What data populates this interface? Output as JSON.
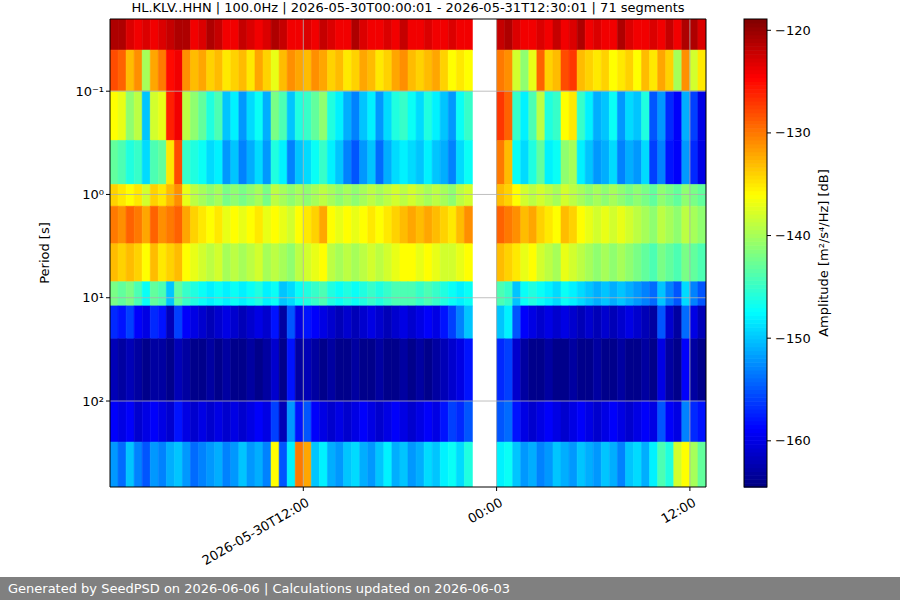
{
  "chart_data": {
    "type": "heatmap",
    "title": "HL.KLV..HHN | 100.0Hz | 2026-05-30T00:00:01 - 2026-05-31T12:30:01 | 71 segments",
    "ylabel": "Period [s]",
    "footer": "Generated by SeedPSD on 2026-06-06 | Calculations updated on 2026-06-03",
    "log": "y",
    "grid": true,
    "color": "jet",
    "xlim": [
      0,
      37
    ],
    "xticks": [
      {
        "value": 12,
        "label": "2026-05-30T12:00"
      },
      {
        "value": 24,
        "label": "00:00"
      },
      {
        "value": 36,
        "label": "12:00"
      }
    ],
    "ylim": [
      0.02,
      680
    ],
    "yticks": [
      {
        "value": 0.1,
        "label": "10⁻¹"
      },
      {
        "value": 1,
        "label": "10⁰"
      },
      {
        "value": 10,
        "label": "10¹"
      },
      {
        "value": 100,
        "label": "10²"
      }
    ],
    "x": [
      0,
      0.5,
      1,
      1.5,
      2,
      2.5,
      3,
      3.5,
      4,
      4.5,
      5,
      5.5,
      6,
      6.5,
      7,
      7.5,
      8,
      8.5,
      9,
      9.5,
      10,
      10.5,
      11,
      11.5,
      12,
      12.5,
      13,
      13.5,
      14,
      14.5,
      15,
      15.5,
      16,
      16.5,
      17,
      17.5,
      18,
      18.5,
      19,
      19.5,
      20,
      20.5,
      21,
      21.5,
      22,
      24,
      24.5,
      25,
      25.5,
      26,
      26.5,
      27,
      27.5,
      28,
      28.5,
      29,
      29.5,
      30,
      30.5,
      31,
      31.5,
      32,
      32.5,
      33,
      33.5,
      34,
      34.5,
      35,
      35.5,
      36,
      36.5
    ],
    "period_edges": [
      0.02,
      0.04,
      0.1,
      0.3,
      0.8,
      1.3,
      3,
      7,
      12,
      25,
      100,
      250,
      680
    ],
    "values": [
      [
        -121,
        -121,
        -123,
        -124,
        -123,
        -124,
        -123,
        -122,
        -121,
        -121,
        -124,
        -123,
        -121,
        -122,
        -124,
        -124,
        -122,
        -123,
        -124,
        -123,
        -121,
        -122,
        -124,
        -124,
        -123,
        -124,
        -122,
        -123,
        -124,
        -124,
        -121,
        -123,
        -124,
        -124,
        -123,
        -124,
        -122,
        -124,
        -124,
        -123,
        -124,
        -124,
        -123,
        -124,
        -124,
        -122,
        -121,
        -123,
        -124,
        -124,
        -123,
        -124,
        -122,
        -124,
        -123,
        -121,
        -124,
        -123,
        -124,
        -124,
        -121,
        -123,
        -124,
        -124,
        -123,
        -124,
        -122,
        -124,
        -121,
        -121,
        -123
      ],
      [
        -128,
        -129,
        -133,
        -131,
        -140,
        -132,
        -130,
        -125,
        -124,
        -131,
        -133,
        -132,
        -134,
        -133,
        -135,
        -134,
        -133,
        -135,
        -132,
        -134,
        -137,
        -133,
        -131,
        -132,
        -133,
        -131,
        -132,
        -134,
        -133,
        -135,
        -134,
        -132,
        -133,
        -135,
        -134,
        -132,
        -131,
        -133,
        -134,
        -133,
        -132,
        -134,
        -136,
        -135,
        -136,
        -130,
        -131,
        -138,
        -141,
        -137,
        -129,
        -134,
        -133,
        -128,
        -127,
        -133,
        -134,
        -135,
        -134,
        -136,
        -135,
        -134,
        -136,
        -133,
        -135,
        -132,
        -134,
        -140,
        -131,
        -138,
        -135
      ],
      [
        -136,
        -137,
        -141,
        -139,
        -150,
        -138,
        -137,
        -126,
        -124,
        -139,
        -141,
        -143,
        -146,
        -144,
        -150,
        -148,
        -152,
        -149,
        -147,
        -151,
        -142,
        -144,
        -150,
        -146,
        -145,
        -143,
        -141,
        -146,
        -148,
        -151,
        -153,
        -150,
        -148,
        -152,
        -149,
        -146,
        -145,
        -147,
        -149,
        -146,
        -148,
        -150,
        -152,
        -147,
        -145,
        -127,
        -129,
        -145,
        -148,
        -144,
        -139,
        -146,
        -145,
        -136,
        -135,
        -145,
        -148,
        -151,
        -150,
        -147,
        -152,
        -149,
        -150,
        -146,
        -155,
        -152,
        -157,
        -159,
        -151,
        -156,
        -160
      ],
      [
        -143,
        -144,
        -146,
        -145,
        -149,
        -144,
        -143,
        -135,
        -128,
        -145,
        -146,
        -147,
        -149,
        -148,
        -152,
        -150,
        -153,
        -151,
        -149,
        -152,
        -146,
        -148,
        -153,
        -150,
        -149,
        -147,
        -145,
        -148,
        -150,
        -153,
        -155,
        -152,
        -150,
        -154,
        -151,
        -149,
        -148,
        -149,
        -150,
        -148,
        -150,
        -151,
        -153,
        -149,
        -147,
        -130,
        -133,
        -147,
        -149,
        -146,
        -143,
        -148,
        -147,
        -141,
        -140,
        -148,
        -150,
        -152,
        -151,
        -149,
        -153,
        -151,
        -152,
        -149,
        -156,
        -153,
        -158,
        -159,
        -152,
        -157,
        -160
      ],
      [
        -134,
        -135,
        -136,
        -135,
        -138,
        -134,
        -135,
        -133,
        -131,
        -137,
        -139,
        -140,
        -141,
        -140,
        -142,
        -141,
        -142,
        -141,
        -140,
        -142,
        -139,
        -140,
        -141,
        -140,
        -141,
        -140,
        -139,
        -140,
        -141,
        -140,
        -141,
        -140,
        -139,
        -140,
        -139,
        -138,
        -139,
        -138,
        -139,
        -140,
        -139,
        -140,
        -141,
        -139,
        -138,
        -133,
        -134,
        -136,
        -138,
        -139,
        -138,
        -139,
        -140,
        -138,
        -139,
        -140,
        -141,
        -140,
        -141,
        -140,
        -141,
        -142,
        -141,
        -142,
        -143,
        -141,
        -142,
        -143,
        -141,
        -142,
        -143
      ],
      [
        -130,
        -131,
        -129,
        -130,
        -132,
        -129,
        -131,
        -130,
        -129,
        -132,
        -134,
        -135,
        -136,
        -135,
        -137,
        -136,
        -137,
        -136,
        -135,
        -137,
        -136,
        -137,
        -138,
        -136,
        -135,
        -134,
        -132,
        -136,
        -137,
        -136,
        -137,
        -136,
        -135,
        -136,
        -135,
        -134,
        -133,
        -132,
        -133,
        -132,
        -133,
        -134,
        -135,
        -133,
        -131,
        -129,
        -130,
        -131,
        -133,
        -132,
        -134,
        -135,
        -136,
        -133,
        -134,
        -136,
        -137,
        -138,
        -137,
        -138,
        -137,
        -138,
        -139,
        -140,
        -141,
        -139,
        -140,
        -141,
        -139,
        -140,
        -141
      ],
      [
        -133,
        -134,
        -133,
        -134,
        -136,
        -133,
        -135,
        -134,
        -133,
        -136,
        -137,
        -138,
        -139,
        -138,
        -140,
        -139,
        -140,
        -139,
        -138,
        -140,
        -139,
        -140,
        -141,
        -139,
        -138,
        -137,
        -136,
        -139,
        -140,
        -139,
        -140,
        -139,
        -138,
        -139,
        -138,
        -137,
        -136,
        -136,
        -137,
        -136,
        -137,
        -138,
        -138,
        -137,
        -136,
        -133,
        -134,
        -135,
        -137,
        -136,
        -138,
        -139,
        -140,
        -137,
        -138,
        -139,
        -140,
        -141,
        -140,
        -141,
        -140,
        -141,
        -142,
        -143,
        -144,
        -142,
        -143,
        -144,
        -142,
        -143,
        -144
      ],
      [
        -142,
        -143,
        -142,
        -144,
        -147,
        -143,
        -144,
        -150,
        -143,
        -145,
        -146,
        -147,
        -148,
        -147,
        -148,
        -147,
        -148,
        -147,
        -146,
        -148,
        -147,
        -150,
        -149,
        -147,
        -146,
        -145,
        -144,
        -146,
        -147,
        -146,
        -147,
        -146,
        -145,
        -146,
        -145,
        -144,
        -144,
        -144,
        -145,
        -144,
        -145,
        -146,
        -147,
        -148,
        -147,
        -144,
        -145,
        -150,
        -147,
        -146,
        -147,
        -148,
        -149,
        -147,
        -148,
        -149,
        -150,
        -151,
        -150,
        -151,
        -150,
        -151,
        -152,
        -153,
        -154,
        -150,
        -153,
        -155,
        -149,
        -153,
        -155
      ],
      [
        -157,
        -158,
        -156,
        -159,
        -160,
        -157,
        -158,
        -162,
        -156,
        -159,
        -160,
        -161,
        -162,
        -161,
        -160,
        -161,
        -162,
        -161,
        -160,
        -161,
        -158,
        -163,
        -155,
        -160,
        -158,
        -159,
        -160,
        -161,
        -162,
        -161,
        -162,
        -161,
        -160,
        -161,
        -162,
        -161,
        -160,
        -161,
        -160,
        -159,
        -160,
        -158,
        -156,
        -153,
        -150,
        -150,
        -148,
        -155,
        -159,
        -160,
        -161,
        -160,
        -161,
        -160,
        -161,
        -162,
        -161,
        -162,
        -161,
        -162,
        -161,
        -160,
        -161,
        -162,
        -163,
        -155,
        -161,
        -163,
        -154,
        -160,
        -162
      ],
      [
        -162,
        -163,
        -162,
        -163,
        -164,
        -163,
        -163,
        -164,
        -162,
        -163,
        -164,
        -164,
        -163,
        -164,
        -163,
        -164,
        -164,
        -163,
        -164,
        -163,
        -161,
        -164,
        -158,
        -163,
        -162,
        -163,
        -164,
        -163,
        -164,
        -164,
        -163,
        -164,
        -164,
        -163,
        -164,
        -164,
        -163,
        -164,
        -163,
        -164,
        -163,
        -162,
        -161,
        -160,
        -158,
        -157,
        -156,
        -161,
        -163,
        -164,
        -164,
        -163,
        -164,
        -164,
        -163,
        -164,
        -164,
        -163,
        -164,
        -164,
        -163,
        -164,
        -164,
        -163,
        -164,
        -160,
        -163,
        -164,
        -159,
        -163,
        -164
      ],
      [
        -159,
        -160,
        -159,
        -161,
        -160,
        -159,
        -160,
        -161,
        -158,
        -160,
        -161,
        -160,
        -161,
        -160,
        -161,
        -160,
        -161,
        -160,
        -159,
        -160,
        -156,
        -162,
        -152,
        -158,
        -155,
        -159,
        -160,
        -161,
        -160,
        -161,
        -160,
        -159,
        -160,
        -161,
        -160,
        -159,
        -160,
        -161,
        -160,
        -159,
        -160,
        -158,
        -156,
        -157,
        -155,
        -155,
        -154,
        -158,
        -160,
        -161,
        -160,
        -159,
        -160,
        -161,
        -160,
        -159,
        -160,
        -161,
        -160,
        -159,
        -160,
        -161,
        -160,
        -159,
        -160,
        -155,
        -159,
        -160,
        -153,
        -157,
        -158
      ],
      [
        -152,
        -154,
        -150,
        -153,
        -155,
        -152,
        -153,
        -151,
        -150,
        -152,
        -154,
        -153,
        -152,
        -151,
        -153,
        -152,
        -150,
        -152,
        -151,
        -153,
        -136,
        -155,
        -148,
        -130,
        -132,
        -150,
        -148,
        -151,
        -152,
        -150,
        -149,
        -151,
        -152,
        -150,
        -148,
        -151,
        -150,
        -152,
        -151,
        -149,
        -150,
        -148,
        -147,
        -149,
        -146,
        -148,
        -147,
        -150,
        -152,
        -151,
        -153,
        -152,
        -150,
        -151,
        -152,
        -150,
        -151,
        -152,
        -150,
        -151,
        -153,
        -150,
        -149,
        -151,
        -148,
        -144,
        -146,
        -138,
        -136,
        -140,
        -143
      ]
    ],
    "colorbar": {
      "label": "Amplitude [m²/s⁴/Hz] [dB]",
      "lim": [
        -164.5,
        -118.9
      ],
      "ticks": [
        {
          "value": -120,
          "label": "−120"
        },
        {
          "value": -130,
          "label": "−130"
        },
        {
          "value": -140,
          "label": "−140"
        },
        {
          "value": -150,
          "label": "−150"
        },
        {
          "value": -160,
          "label": "−160"
        }
      ]
    }
  }
}
